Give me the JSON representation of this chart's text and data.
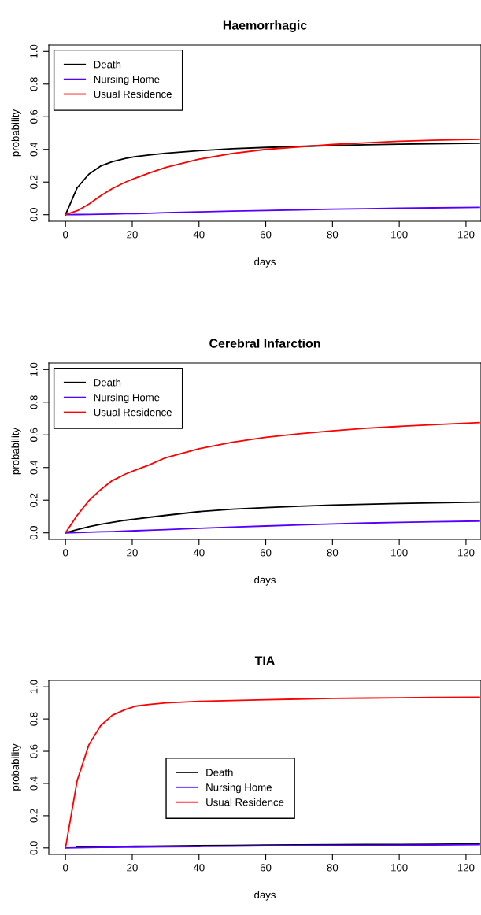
{
  "chart_data": [
    {
      "type": "line",
      "title": "Haemorrhagic",
      "xlabel": "days",
      "ylabel": "probability",
      "xlim": [
        -5,
        124.5
      ],
      "ylim": [
        -0.04,
        1.04
      ],
      "xticks": [
        0,
        20,
        40,
        60,
        80,
        100,
        120
      ],
      "yticks": [
        {
          "value": 0,
          "label": "0.0"
        },
        {
          "value": 0.2,
          "label": "0.2"
        },
        {
          "value": 0.4,
          "label": "0.4"
        },
        {
          "value": 0.6,
          "label": "0.6"
        },
        {
          "value": 0.8,
          "label": "0.8"
        },
        {
          "value": 1,
          "label": "1.0"
        }
      ],
      "grid": false,
      "legend": "top left",
      "x": [
        0,
        3.5,
        7,
        10.5,
        14,
        18,
        21,
        25,
        30,
        40,
        50,
        60,
        70,
        80,
        90,
        100,
        110,
        124
      ],
      "series": [
        {
          "name": "Death",
          "color": "#000000",
          "values": [
            0,
            0.165,
            0.248,
            0.298,
            0.325,
            0.345,
            0.356,
            0.366,
            0.376,
            0.392,
            0.404,
            0.412,
            0.418,
            0.424,
            0.428,
            0.432,
            0.435,
            0.438
          ]
        },
        {
          "name": "Nursing Home",
          "color": "#5500ff",
          "values": [
            0,
            0.001,
            0.002,
            0.003,
            0.004,
            0.006,
            0.007,
            0.009,
            0.012,
            0.017,
            0.022,
            0.026,
            0.03,
            0.034,
            0.037,
            0.04,
            0.042,
            0.045
          ]
        },
        {
          "name": "Usual Residence",
          "color": "#ff0000",
          "values": [
            0,
            0.024,
            0.065,
            0.115,
            0.16,
            0.2,
            0.225,
            0.255,
            0.29,
            0.34,
            0.375,
            0.4,
            0.415,
            0.43,
            0.44,
            0.45,
            0.456,
            0.462
          ]
        }
      ]
    },
    {
      "type": "line",
      "title": "Cerebral Infarction",
      "xlabel": "days",
      "ylabel": "probability",
      "xlim": [
        -5,
        124.5
      ],
      "ylim": [
        -0.04,
        1.04
      ],
      "xticks": [
        0,
        20,
        40,
        60,
        80,
        100,
        120
      ],
      "yticks": [
        {
          "value": 0,
          "label": "0.0"
        },
        {
          "value": 0.2,
          "label": "0.2"
        },
        {
          "value": 0.4,
          "label": "0.4"
        },
        {
          "value": 0.6,
          "label": "0.6"
        },
        {
          "value": 0.8,
          "label": "0.8"
        },
        {
          "value": 1,
          "label": "1.0"
        }
      ],
      "grid": false,
      "legend": "top left",
      "x": [
        0,
        3.5,
        7,
        10.5,
        14,
        18,
        21,
        25,
        30,
        40,
        50,
        60,
        70,
        80,
        90,
        100,
        110,
        124
      ],
      "series": [
        {
          "name": "Death",
          "color": "#000000",
          "values": [
            0,
            0.02,
            0.038,
            0.052,
            0.064,
            0.077,
            0.085,
            0.095,
            0.107,
            0.13,
            0.145,
            0.155,
            0.163,
            0.17,
            0.175,
            0.18,
            0.184,
            0.188
          ]
        },
        {
          "name": "Nursing Home",
          "color": "#5500ff",
          "values": [
            0,
            0.002,
            0.004,
            0.006,
            0.008,
            0.011,
            0.013,
            0.016,
            0.02,
            0.028,
            0.035,
            0.042,
            0.049,
            0.055,
            0.06,
            0.064,
            0.068,
            0.072
          ]
        },
        {
          "name": "Usual Residence",
          "color": "#ff0000",
          "values": [
            0,
            0.107,
            0.197,
            0.264,
            0.32,
            0.36,
            0.385,
            0.415,
            0.46,
            0.515,
            0.555,
            0.585,
            0.607,
            0.625,
            0.64,
            0.652,
            0.662,
            0.675
          ]
        }
      ]
    },
    {
      "type": "line",
      "title": "TIA",
      "xlabel": "days",
      "ylabel": "probability",
      "xlim": [
        -5,
        124.5
      ],
      "ylim": [
        -0.04,
        1.04
      ],
      "xticks": [
        0,
        20,
        40,
        60,
        80,
        100,
        120
      ],
      "yticks": [
        {
          "value": 0,
          "label": "0.0"
        },
        {
          "value": 0.2,
          "label": "0.2"
        },
        {
          "value": 0.4,
          "label": "0.4"
        },
        {
          "value": 0.6,
          "label": "0.6"
        },
        {
          "value": 0.8,
          "label": "0.8"
        },
        {
          "value": 1,
          "label": "1.0"
        }
      ],
      "grid": false,
      "legend": "center",
      "x": [
        0,
        3.5,
        7,
        10.5,
        14,
        18,
        21,
        25,
        30,
        40,
        50,
        60,
        70,
        80,
        90,
        100,
        110,
        124
      ],
      "series": [
        {
          "name": "Death",
          "color": "#000000",
          "values": [
            null,
            0.005,
            0.006,
            0.007,
            0.008,
            0.009,
            0.01,
            0.011,
            0.012,
            0.014,
            0.016,
            0.018,
            0.019,
            0.02,
            0.021,
            0.022,
            0.023,
            0.025
          ]
        },
        {
          "name": "Nursing Home",
          "color": "#5500ff",
          "values": [
            0,
            0.001,
            0.002,
            0.003,
            0.004,
            0.005,
            0.005,
            0.006,
            0.007,
            0.009,
            0.011,
            0.013,
            0.014,
            0.015,
            0.016,
            0.017,
            0.018,
            0.02
          ]
        },
        {
          "name": "Usual Residence",
          "color": "#ff0000",
          "values": [
            0,
            0.418,
            0.64,
            0.758,
            0.823,
            0.86,
            0.88,
            0.89,
            0.9,
            0.91,
            0.915,
            0.92,
            0.924,
            0.928,
            0.93,
            0.932,
            0.934,
            0.935
          ]
        }
      ]
    }
  ]
}
